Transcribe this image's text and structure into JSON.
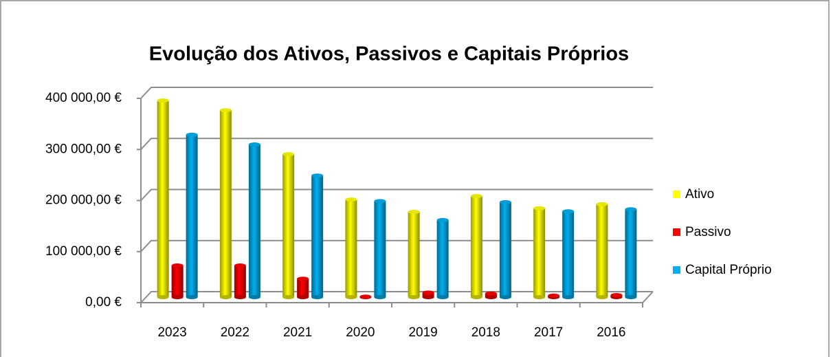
{
  "chart_data": {
    "type": "bar3d",
    "title": "Evolução   dos Ativos, Passivos e Capitais Próprios",
    "categories": [
      "2023",
      "2022",
      "2021",
      "2020",
      "2019",
      "2018",
      "2017",
      "2016"
    ],
    "series": [
      {
        "name": "Ativo",
        "color": "#ffff00",
        "values": [
          385000,
          366000,
          280000,
          191000,
          167000,
          198000,
          174000,
          182000
        ]
      },
      {
        "name": "Passivo",
        "color": "#ff0000",
        "values": [
          62000,
          62000,
          36000,
          1000,
          9000,
          7000,
          3000,
          4000
        ]
      },
      {
        "name": "Capital Próprio",
        "color": "#00b0f0",
        "values": [
          318000,
          299000,
          238000,
          188000,
          151000,
          186000,
          168000,
          172000
        ]
      }
    ],
    "ylim": [
      0,
      400000
    ],
    "yticks": [
      {
        "value": 0,
        "label": "0,00 €"
      },
      {
        "value": 100000,
        "label": "100 000,00 €"
      },
      {
        "value": 200000,
        "label": "200 000,00 €"
      },
      {
        "value": 300000,
        "label": "300 000,00 €"
      },
      {
        "value": 400000,
        "label": "400 000,00 €"
      }
    ],
    "grid": true,
    "legend": "right"
  }
}
